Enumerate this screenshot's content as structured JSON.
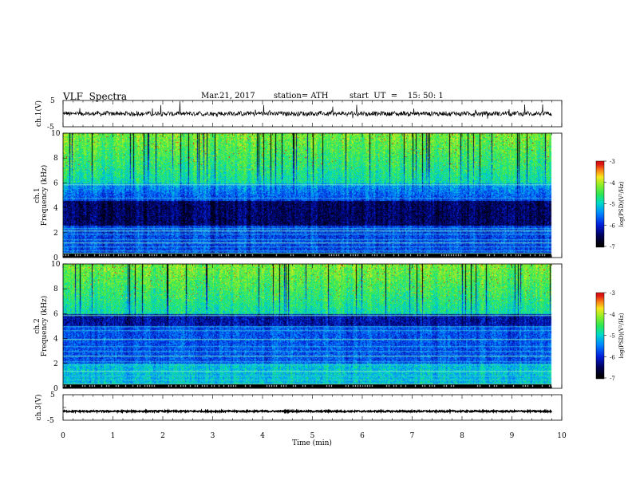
{
  "header": {
    "title": "VLF  Spectra",
    "date": "Mar.21, 2017",
    "station": "station= ATH",
    "start": "start  UT  =    15: 50: 1"
  },
  "chart_data": [
    {
      "type": "line",
      "ylabel": "ch.1(V)",
      "ylim": [
        -5,
        5
      ],
      "yticks": [
        "5",
        "-5"
      ],
      "xlim": [
        0,
        10
      ],
      "data_extent_min": 9.8,
      "description_values": {
        "baseline": 0,
        "noise_amplitude": 0.8,
        "spike_max": 4
      }
    },
    {
      "type": "heatmap",
      "ylabel": "ch.1  Frequency (kHz)",
      "ylim": [
        0,
        10
      ],
      "yticks": [
        "0",
        "2",
        "4",
        "6",
        "8",
        "10"
      ],
      "xlim": [
        0,
        10
      ],
      "colorbar": {
        "label": "log(PSD)(V²/Hz)",
        "range": [
          -7,
          -3
        ],
        "ticks": [
          "-3",
          "-4",
          "-5",
          "-6",
          "-7"
        ]
      },
      "dark_band_khz": [
        2.6,
        4.6
      ],
      "horizontal_lines_khz": [
        0.4,
        0.6,
        0.9,
        1.2,
        1.5,
        1.9,
        2.2,
        2.4,
        4.8,
        5.9
      ]
    },
    {
      "type": "heatmap",
      "ylabel": "ch.2  Frequency (kHz)",
      "ylim": [
        0,
        10
      ],
      "yticks": [
        "0",
        "2",
        "4",
        "6",
        "8",
        "10"
      ],
      "xlim": [
        0,
        10
      ],
      "colorbar": {
        "label": "log(PSD)(V²/Hz)",
        "range": [
          -7,
          -3
        ],
        "ticks": [
          "-3",
          "-4",
          "-5",
          "-6",
          "-7"
        ]
      },
      "dark_band_khz": [
        5.0,
        5.8
      ],
      "horizontal_lines_khz": [
        0.4,
        0.7,
        1.0,
        1.4,
        1.9,
        2.2,
        2.6,
        3.0,
        3.4,
        4.0,
        4.7,
        5.0,
        5.9
      ]
    },
    {
      "type": "line",
      "ylabel": "ch.3(V)",
      "ylim": [
        -5,
        5
      ],
      "yticks": [
        "5",
        "-5"
      ],
      "xlim": [
        0,
        10
      ],
      "data_extent_min": 9.8,
      "description_values": {
        "baseline": -1.5,
        "noise_amplitude": 0.3
      }
    }
  ],
  "xaxis": {
    "label": "Time  (min)",
    "ticks": [
      "0",
      "1",
      "2",
      "3",
      "4",
      "5",
      "6",
      "7",
      "8",
      "9",
      "10"
    ]
  }
}
